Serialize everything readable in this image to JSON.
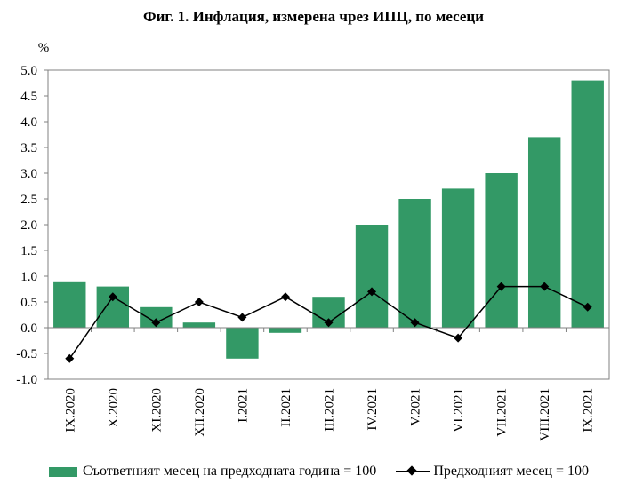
{
  "chart_data": {
    "type": "bar",
    "title": "Фиг. 1. Инфлация, измерена чрез ИПЦ, по месеци",
    "ylabel": "%",
    "ylim": [
      -1.0,
      5.0
    ],
    "yticks": [
      "5.0",
      "4.5",
      "4.0",
      "3.5",
      "3.0",
      "2.5",
      "2.0",
      "1.5",
      "1.0",
      "0.5",
      "0.0",
      "-0.5",
      "-1.0"
    ],
    "categories": [
      "IX.2020",
      "X.2020",
      "XI.2020",
      "XII.2020",
      "I.2021",
      "II.2021",
      "III.2021",
      "IV.2021",
      "V.2021",
      "VI.2021",
      "VII.2021",
      "VIII.2021",
      "IX.2021"
    ],
    "series": [
      {
        "name": "Съответният месец на предходната година = 100",
        "type": "bar",
        "color": "#339966",
        "values": [
          0.9,
          0.8,
          0.4,
          0.1,
          -0.6,
          -0.1,
          0.6,
          2.0,
          2.5,
          2.7,
          3.0,
          3.7,
          4.8
        ]
      },
      {
        "name": "Предходният месец = 100",
        "type": "line",
        "color": "#000000",
        "marker": "diamond",
        "values": [
          -0.6,
          0.6,
          0.1,
          0.5,
          0.2,
          0.6,
          0.1,
          0.7,
          0.1,
          -0.2,
          0.8,
          0.8,
          0.4
        ]
      }
    ],
    "grid": false,
    "legend_position": "bottom"
  }
}
